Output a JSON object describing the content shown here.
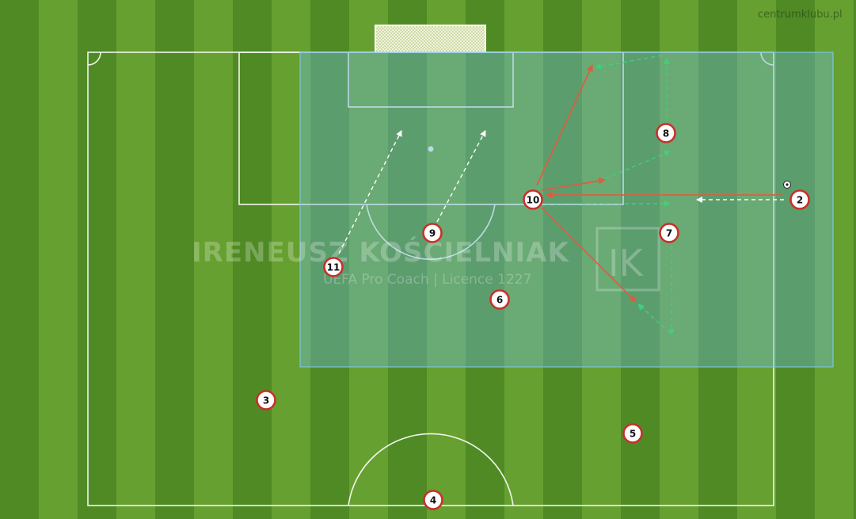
{
  "credit": "centrumklubu.pl",
  "watermark": {
    "name": "IRENEUSZ KOŚCIELNIAK",
    "subtitle": "UEFA Pro Coach  |  Licence 1227",
    "logo": "IK"
  },
  "colors": {
    "grass_dark": "#4f8a24",
    "grass_light": "#66a030",
    "line": "#f2f5ec",
    "zone": "#6fb7d6",
    "pass": "#d86040",
    "run": "#ffffff",
    "green_run": "#3fd07a",
    "player_ring": "#c8302a"
  },
  "players": [
    {
      "number": "2"
    },
    {
      "number": "3"
    },
    {
      "number": "4"
    },
    {
      "number": "5"
    },
    {
      "number": "6"
    },
    {
      "number": "7"
    },
    {
      "number": "8"
    },
    {
      "number": "9"
    },
    {
      "number": "10"
    },
    {
      "number": "11"
    }
  ]
}
